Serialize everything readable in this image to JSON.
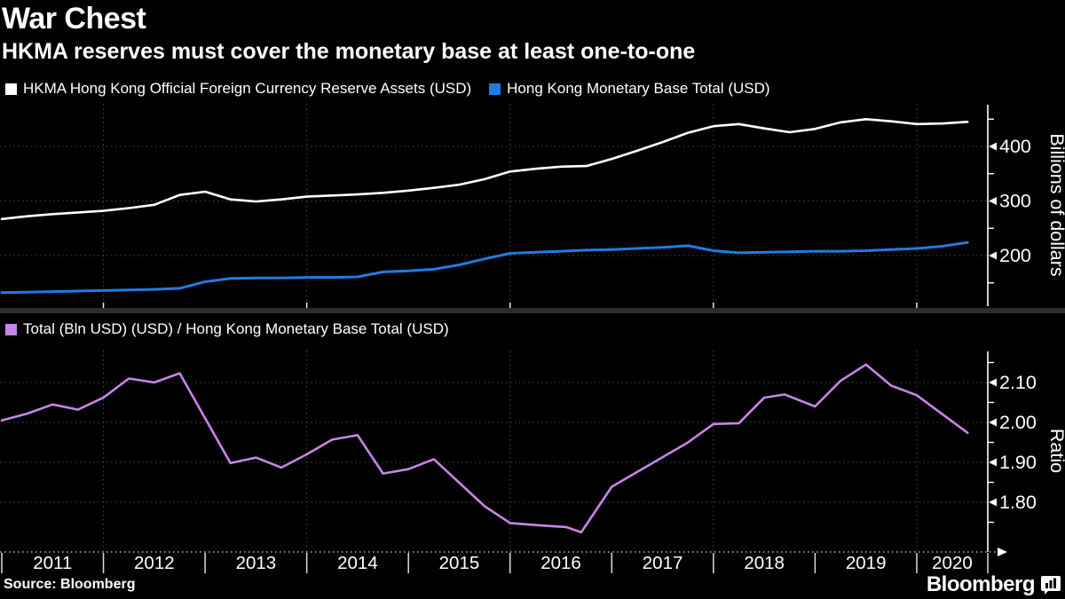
{
  "header": {
    "title": "War Chest",
    "subtitle": "HKMA reserves must cover the monetary base at least one-to-one"
  },
  "colors": {
    "background": "#000000",
    "reserves_line": "#ffffff",
    "monetary_base_line": "#1f7ce0",
    "ratio_line": "#c685e8",
    "grid": "#4a4a4a",
    "axis": "#ffffff",
    "divider": "#2d2d2d"
  },
  "top_panel": {
    "legend": [
      {
        "label": "HKMA Hong Kong Official Foreign Currency Reserve Assets (USD)",
        "color": "#ffffff"
      },
      {
        "label": "Hong Kong Monetary Base Total (USD)",
        "color": "#1f7ce0"
      }
    ],
    "y_axis": {
      "title": "Billions of dollars",
      "major_ticks": [
        {
          "value": 400,
          "label": "400"
        },
        {
          "value": 300,
          "label": "300"
        },
        {
          "value": 200,
          "label": "200"
        }
      ],
      "minor_ticks": [
        450,
        350,
        250,
        150
      ]
    }
  },
  "bottom_panel": {
    "legend": [
      {
        "label": "Total (Bln USD) (USD) / Hong Kong Monetary Base Total (USD)",
        "color": "#c685e8"
      }
    ],
    "y_axis": {
      "title": "Ratio",
      "major_ticks": [
        {
          "value": 2.1,
          "label": "2.10"
        },
        {
          "value": 2.0,
          "label": "2.00"
        },
        {
          "value": 1.9,
          "label": "1.90"
        },
        {
          "value": 1.8,
          "label": "1.80"
        }
      ],
      "minor_ticks": [
        2.15,
        2.05,
        1.95,
        1.85,
        1.75
      ]
    }
  },
  "x_axis": {
    "years": [
      2011,
      2012,
      2013,
      2014,
      2015,
      2016,
      2017,
      2018,
      2019,
      2020
    ],
    "year_labels": [
      "2011",
      "2012",
      "2013",
      "2014",
      "2015",
      "2016",
      "2017",
      "2018",
      "2019",
      "2020"
    ],
    "gridline_years": [
      2012,
      2014,
      2016,
      2018,
      2020
    ]
  },
  "footer": {
    "source": "Source: Bloomberg",
    "brand": "Bloomberg"
  },
  "chart_data": [
    {
      "type": "line",
      "panel": "top",
      "ylabel": "Billions of dollars",
      "yticks": [
        200,
        300,
        400
      ],
      "ylim": [
        110,
        470
      ],
      "x_range": [
        2011.0,
        2020.5
      ],
      "legend_position": "top",
      "grid": true,
      "series": [
        {
          "name": "HKMA Hong Kong Official Foreign Currency Reserve Assets (USD)",
          "color": "#ffffff",
          "x": [
            2011.0,
            2011.25,
            2011.5,
            2011.75,
            2012.0,
            2012.25,
            2012.5,
            2012.75,
            2013.0,
            2013.25,
            2013.5,
            2013.75,
            2014.0,
            2014.25,
            2014.5,
            2014.75,
            2015.0,
            2015.25,
            2015.5,
            2015.75,
            2016.0,
            2016.25,
            2016.5,
            2016.75,
            2017.0,
            2017.25,
            2017.5,
            2017.75,
            2018.0,
            2018.25,
            2018.5,
            2018.75,
            2019.0,
            2019.25,
            2019.5,
            2019.75,
            2020.0,
            2020.25,
            2020.5
          ],
          "values": [
            267,
            272,
            276,
            279,
            282,
            287,
            293,
            311,
            317,
            303,
            299,
            303,
            308,
            310,
            312,
            315,
            319,
            324,
            330,
            340,
            354,
            359,
            363,
            364,
            377,
            392,
            408,
            425,
            437,
            441,
            433,
            426,
            432,
            444,
            450,
            446,
            441,
            442,
            445
          ]
        },
        {
          "name": "Hong Kong Monetary Base Total (USD)",
          "color": "#1f7ce0",
          "x": [
            2011.0,
            2011.25,
            2011.5,
            2011.75,
            2012.0,
            2012.25,
            2012.5,
            2012.75,
            2013.0,
            2013.25,
            2013.5,
            2013.75,
            2014.0,
            2014.25,
            2014.5,
            2014.75,
            2015.0,
            2015.25,
            2015.5,
            2015.75,
            2016.0,
            2016.25,
            2016.5,
            2016.75,
            2017.0,
            2017.25,
            2017.5,
            2017.75,
            2018.0,
            2018.25,
            2018.5,
            2018.75,
            2019.0,
            2019.25,
            2019.5,
            2019.75,
            2020.0,
            2020.25,
            2020.5
          ],
          "values": [
            132,
            133,
            134,
            135,
            136,
            137,
            138,
            140,
            152,
            158,
            159,
            159,
            160,
            160,
            161,
            170,
            172,
            175,
            183,
            194,
            204,
            206,
            208,
            210,
            211,
            213,
            215,
            218,
            209,
            205,
            206,
            207,
            208,
            208,
            209,
            211,
            213,
            217,
            224
          ]
        }
      ]
    },
    {
      "type": "line",
      "panel": "bottom",
      "ylabel": "Ratio",
      "yticks": [
        1.8,
        1.9,
        2.0,
        2.1
      ],
      "ylim": [
        1.7,
        2.18
      ],
      "x_range": [
        2011.0,
        2020.5
      ],
      "grid": true,
      "series": [
        {
          "name": "Total (Bln USD) (USD) / Hong Kong Monetary Base Total (USD)",
          "color": "#c685e8",
          "x": [
            2011.0,
            2011.25,
            2011.5,
            2011.75,
            2012.0,
            2012.25,
            2012.5,
            2012.75,
            2013.25,
            2013.5,
            2013.75,
            2014.0,
            2014.25,
            2014.5,
            2014.75,
            2015.0,
            2015.25,
            2015.75,
            2016.0,
            2016.3,
            2016.55,
            2016.7,
            2017.0,
            2017.4,
            2017.75,
            2018.0,
            2018.25,
            2018.5,
            2018.7,
            2019.0,
            2019.25,
            2019.5,
            2019.75,
            2020.0,
            2020.5
          ],
          "values": [
            2.005,
            2.022,
            2.045,
            2.032,
            2.062,
            2.11,
            2.1,
            2.123,
            1.898,
            1.912,
            1.887,
            1.92,
            1.957,
            1.968,
            1.872,
            1.883,
            1.908,
            1.79,
            1.748,
            1.742,
            1.738,
            1.725,
            1.839,
            1.898,
            1.95,
            1.996,
            1.998,
            2.062,
            2.07,
            2.04,
            2.104,
            2.145,
            2.092,
            2.068,
            1.974
          ]
        }
      ]
    }
  ]
}
